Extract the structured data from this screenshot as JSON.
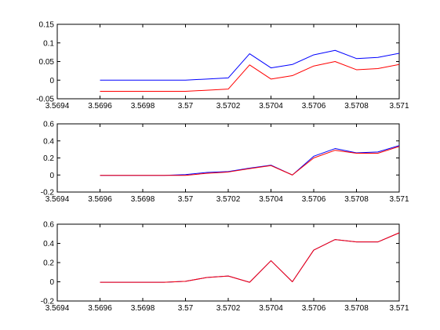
{
  "chart_data": [
    {
      "type": "line",
      "x": [
        3.5696,
        3.5697,
        3.5698,
        3.5699,
        3.57,
        3.5701,
        3.5702,
        3.5703,
        3.5704,
        3.5705,
        3.5706,
        3.5707,
        3.5708,
        3.5709,
        3.571
      ],
      "xlim": [
        3.5694,
        3.571
      ],
      "ylim": [
        -0.05,
        0.15
      ],
      "xticks": [
        "3.5694",
        "3.5696",
        "3.5698",
        "3.57",
        "3.5702",
        "3.5704",
        "3.5706",
        "3.5708",
        "3.571"
      ],
      "yticks": [
        "-0.05",
        "0",
        "0.05",
        "0.1",
        "0.15"
      ],
      "series": [
        {
          "color": "#0000ff",
          "values": [
            0.0,
            0.0,
            0.0,
            0.0,
            0.0,
            0.003,
            0.006,
            0.071,
            0.033,
            0.042,
            0.068,
            0.08,
            0.058,
            0.061,
            0.072
          ]
        },
        {
          "color": "#ff0000",
          "values": [
            -0.03,
            -0.03,
            -0.03,
            -0.03,
            -0.03,
            -0.027,
            -0.024,
            0.041,
            0.003,
            0.012,
            0.038,
            0.05,
            0.028,
            0.031,
            0.042
          ]
        }
      ]
    },
    {
      "type": "line",
      "x": [
        3.5696,
        3.5697,
        3.5698,
        3.5699,
        3.57,
        3.5701,
        3.5702,
        3.5703,
        3.5704,
        3.5705,
        3.5706,
        3.5707,
        3.5708,
        3.5709,
        3.571
      ],
      "xlim": [
        3.5694,
        3.571
      ],
      "ylim": [
        -0.2,
        0.6
      ],
      "xticks": [
        "3.5694",
        "3.5696",
        "3.5698",
        "3.57",
        "3.5702",
        "3.5704",
        "3.5706",
        "3.5708",
        "3.571"
      ],
      "yticks": [
        "-0.2",
        "0",
        "0.2",
        "0.4",
        "0.6"
      ],
      "series": [
        {
          "color": "#0000ff",
          "values": [
            -0.005,
            -0.005,
            -0.005,
            -0.005,
            0.005,
            0.03,
            0.04,
            0.08,
            0.115,
            0.0,
            0.22,
            0.31,
            0.26,
            0.27,
            0.345
          ]
        },
        {
          "color": "#ff0000",
          "values": [
            -0.005,
            -0.005,
            -0.005,
            -0.005,
            -0.005,
            0.02,
            0.035,
            0.075,
            0.11,
            0.0,
            0.2,
            0.29,
            0.255,
            0.255,
            0.335
          ]
        }
      ]
    },
    {
      "type": "line",
      "x": [
        3.5696,
        3.5697,
        3.5698,
        3.5699,
        3.57,
        3.5701,
        3.5702,
        3.5703,
        3.5704,
        3.5705,
        3.5706,
        3.5707,
        3.5708,
        3.5709,
        3.571
      ],
      "xlim": [
        3.5694,
        3.571
      ],
      "ylim": [
        -0.2,
        0.6
      ],
      "xticks": [
        "3.5694",
        "3.5696",
        "3.5698",
        "3.57",
        "3.5702",
        "3.5704",
        "3.5706",
        "3.5708",
        "3.571"
      ],
      "yticks": [
        "-0.2",
        "0",
        "0.2",
        "0.4",
        "0.6"
      ],
      "series": [
        {
          "color": "#0000ff",
          "values": [
            -0.005,
            -0.005,
            -0.005,
            -0.005,
            0.005,
            0.045,
            0.06,
            -0.005,
            0.22,
            0.0,
            0.33,
            0.44,
            0.415,
            0.415,
            0.51
          ]
        },
        {
          "color": "#ff0000",
          "values": [
            -0.005,
            -0.005,
            -0.005,
            -0.005,
            0.005,
            0.045,
            0.06,
            -0.005,
            0.22,
            0.0,
            0.33,
            0.44,
            0.415,
            0.415,
            0.51
          ]
        }
      ]
    }
  ]
}
